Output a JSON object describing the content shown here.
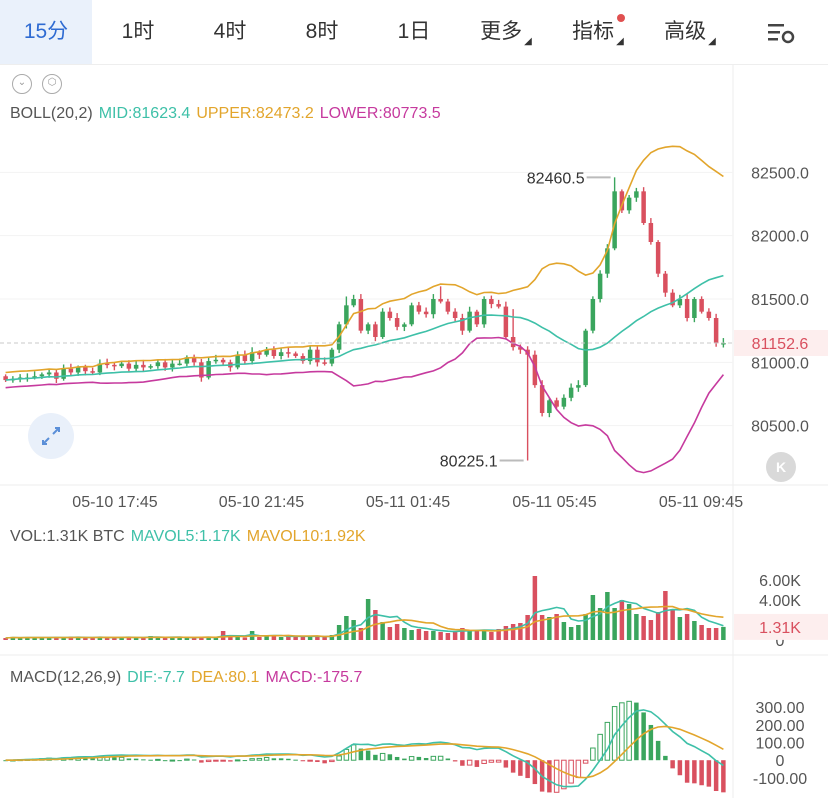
{
  "tabs": [
    {
      "label": "15分",
      "active": true
    },
    {
      "label": "1时"
    },
    {
      "label": "4时"
    },
    {
      "label": "8时"
    },
    {
      "label": "1日"
    },
    {
      "label": "更多",
      "dropdown": true
    },
    {
      "label": "指标",
      "dropdown": true,
      "badge": true
    },
    {
      "label": "高级",
      "dropdown": true
    }
  ],
  "colors": {
    "up": "#3aa55d",
    "down": "#d9505f",
    "mid": "#3ec0a8",
    "upper": "#e2a52c",
    "lower": "#c63a9e",
    "accent": "#2f6bd2"
  },
  "boll": {
    "label": "BOLL(20,2)",
    "mid": "MID:81623.4",
    "upper": "UPPER:82473.2",
    "lower": "LOWER:80773.5"
  },
  "vol": {
    "label": "VOL:1.31K BTC",
    "mavol5": "MAVOL5:1.17K",
    "mavol10": "MAVOL10:1.92K"
  },
  "macd": {
    "label": "MACD(12,26,9)",
    "dif": "DIF:-7.7",
    "dea": "DEA:80.1",
    "macd": "MACD:-175.7"
  },
  "k_button": "K",
  "chart_data": [
    {
      "type": "candlestick",
      "price_axis": {
        "ticks": [
          "82500.0",
          "82000.0",
          "81500.0",
          "81000.0",
          "80500.0"
        ],
        "ylim": [
          80150,
          82850
        ]
      },
      "time_axis": [
        "05-10 17:45",
        "05-10 21:45",
        "05-11 01:45",
        "05-11 05:45",
        "05-11 09:45"
      ],
      "current_price": "81152.6",
      "annotations": [
        {
          "label": "82460.5",
          "type": "high"
        },
        {
          "label": "80225.1",
          "type": "low"
        }
      ],
      "close_start": 80890,
      "closes": [
        80860,
        80870,
        80880,
        80880,
        80890,
        80905,
        80920,
        80870,
        80950,
        80920,
        80960,
        80930,
        80920,
        80990,
        80980,
        80970,
        80990,
        80950,
        80980,
        80960,
        80970,
        81000,
        80960,
        80990,
        80990,
        81040,
        81000,
        80880,
        81010,
        81020,
        81000,
        80960,
        81060,
        81010,
        81080,
        81060,
        81100,
        81050,
        81080,
        81070,
        81050,
        81010,
        81100,
        81000,
        80990,
        81100,
        81300,
        81450,
        81500,
        81250,
        81300,
        81200,
        81400,
        81350,
        81280,
        81300,
        81450,
        81400,
        81380,
        81500,
        81480,
        81400,
        81350,
        81250,
        81400,
        81300,
        81500,
        81460,
        81440,
        81200,
        81120,
        81100,
        81060,
        80820,
        80600,
        80700,
        80650,
        80720,
        80800,
        80820,
        81250,
        81500,
        81700,
        81900,
        82350,
        82200,
        82300,
        82350,
        82100,
        81950,
        81700,
        81550,
        81450,
        81500,
        81350,
        81500,
        81400,
        81350,
        81150,
        81152.6
      ],
      "highs": {
        "47": 81520,
        "60": 81600,
        "84": 82460.5,
        "70": 81420
      },
      "lows": {
        "72": 80225.1
      }
    },
    {
      "type": "bar",
      "name": "volume",
      "ticks": [
        "6.00K",
        "4.00K",
        "0"
      ],
      "current": "1.31K",
      "ylim": [
        0,
        8000
      ],
      "values": [
        200,
        300,
        200,
        250,
        300,
        200,
        300,
        250,
        200,
        350,
        300,
        200,
        200,
        350,
        250,
        200,
        300,
        300,
        200,
        250,
        400,
        300,
        200,
        250,
        300,
        200,
        250,
        350,
        300,
        200,
        900,
        400,
        300,
        250,
        900,
        300,
        350,
        400,
        300,
        500,
        350,
        300,
        400,
        350,
        300,
        500,
        1500,
        2400,
        2000,
        1200,
        4100,
        3000,
        1800,
        1300,
        1600,
        1200,
        1000,
        1100,
        900,
        900,
        800,
        700,
        900,
        1200,
        1000,
        1000,
        900,
        800,
        1100,
        1400,
        1600,
        1700,
        2500,
        6400,
        2500,
        2300,
        2600,
        1800,
        1300,
        1500,
        2600,
        4500,
        3200,
        4800,
        3200,
        4000,
        3600,
        2600,
        2400,
        2000,
        2800,
        4900,
        3100,
        2300,
        2600,
        1900,
        1500,
        1200,
        1200,
        1310
      ]
    },
    {
      "type": "bar",
      "name": "macd_histogram",
      "ticks": [
        "300.00",
        "200.00",
        "100.00",
        "0",
        "-100.00"
      ],
      "ylim": [
        -140,
        340
      ]
    }
  ]
}
